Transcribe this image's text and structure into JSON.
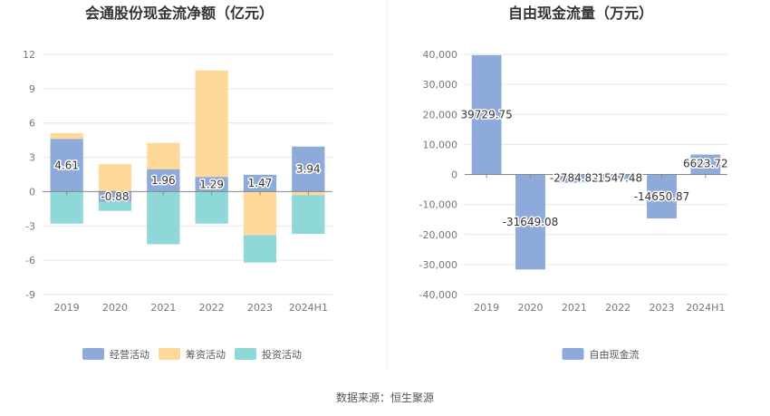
{
  "source": "数据来源：恒生聚源",
  "chart_data": [
    {
      "type": "bar",
      "stacked": true,
      "title": "会通股份现金流净额（亿元）",
      "categories": [
        "2019",
        "2020",
        "2021",
        "2022",
        "2023",
        "2024H1"
      ],
      "ylim": [
        -9,
        12
      ],
      "yticks": [
        -9,
        -6,
        -3,
        0,
        3,
        6,
        9,
        12
      ],
      "grid": true,
      "legend_position": "bottom",
      "series": [
        {
          "name": "经营活动",
          "color": "#8eaadb",
          "values": [
            4.61,
            -0.88,
            1.96,
            1.29,
            1.47,
            3.94
          ],
          "labels": [
            "4.61",
            "-0.88",
            "1.96",
            "1.29",
            "1.47",
            "3.94"
          ]
        },
        {
          "name": "筹资活动",
          "color": "#ffd99a",
          "values": [
            0.5,
            2.4,
            2.3,
            9.3,
            -3.8,
            -0.3
          ]
        },
        {
          "name": "投资活动",
          "color": "#8fd8d8",
          "values": [
            -2.8,
            -0.8,
            -4.6,
            -2.8,
            -2.4,
            -3.4
          ]
        }
      ]
    },
    {
      "type": "bar",
      "title": "自由现金流量（万元）",
      "categories": [
        "2019",
        "2020",
        "2021",
        "2022",
        "2023",
        "2024H1"
      ],
      "ylim": [
        -40000,
        40000
      ],
      "yticks": [
        -40000,
        -30000,
        -20000,
        -10000,
        0,
        10000,
        20000,
        30000,
        40000
      ],
      "ytick_labels": [
        "-40,000",
        "-30,000",
        "-20,000",
        "-10,000",
        "0",
        "10,000",
        "20,000",
        "30,000",
        "40,000"
      ],
      "grid": true,
      "legend_position": "bottom",
      "series": [
        {
          "name": "自由现金流",
          "color": "#8eaadb",
          "values": [
            39729.75,
            -31649.08,
            -2784.82,
            -1547.48,
            -14650.87,
            6623.72
          ],
          "labels": [
            "39729.75",
            "-31649.08",
            "-2784.82",
            "-1547.48",
            "-14650.87",
            "6623.72"
          ]
        }
      ]
    }
  ]
}
